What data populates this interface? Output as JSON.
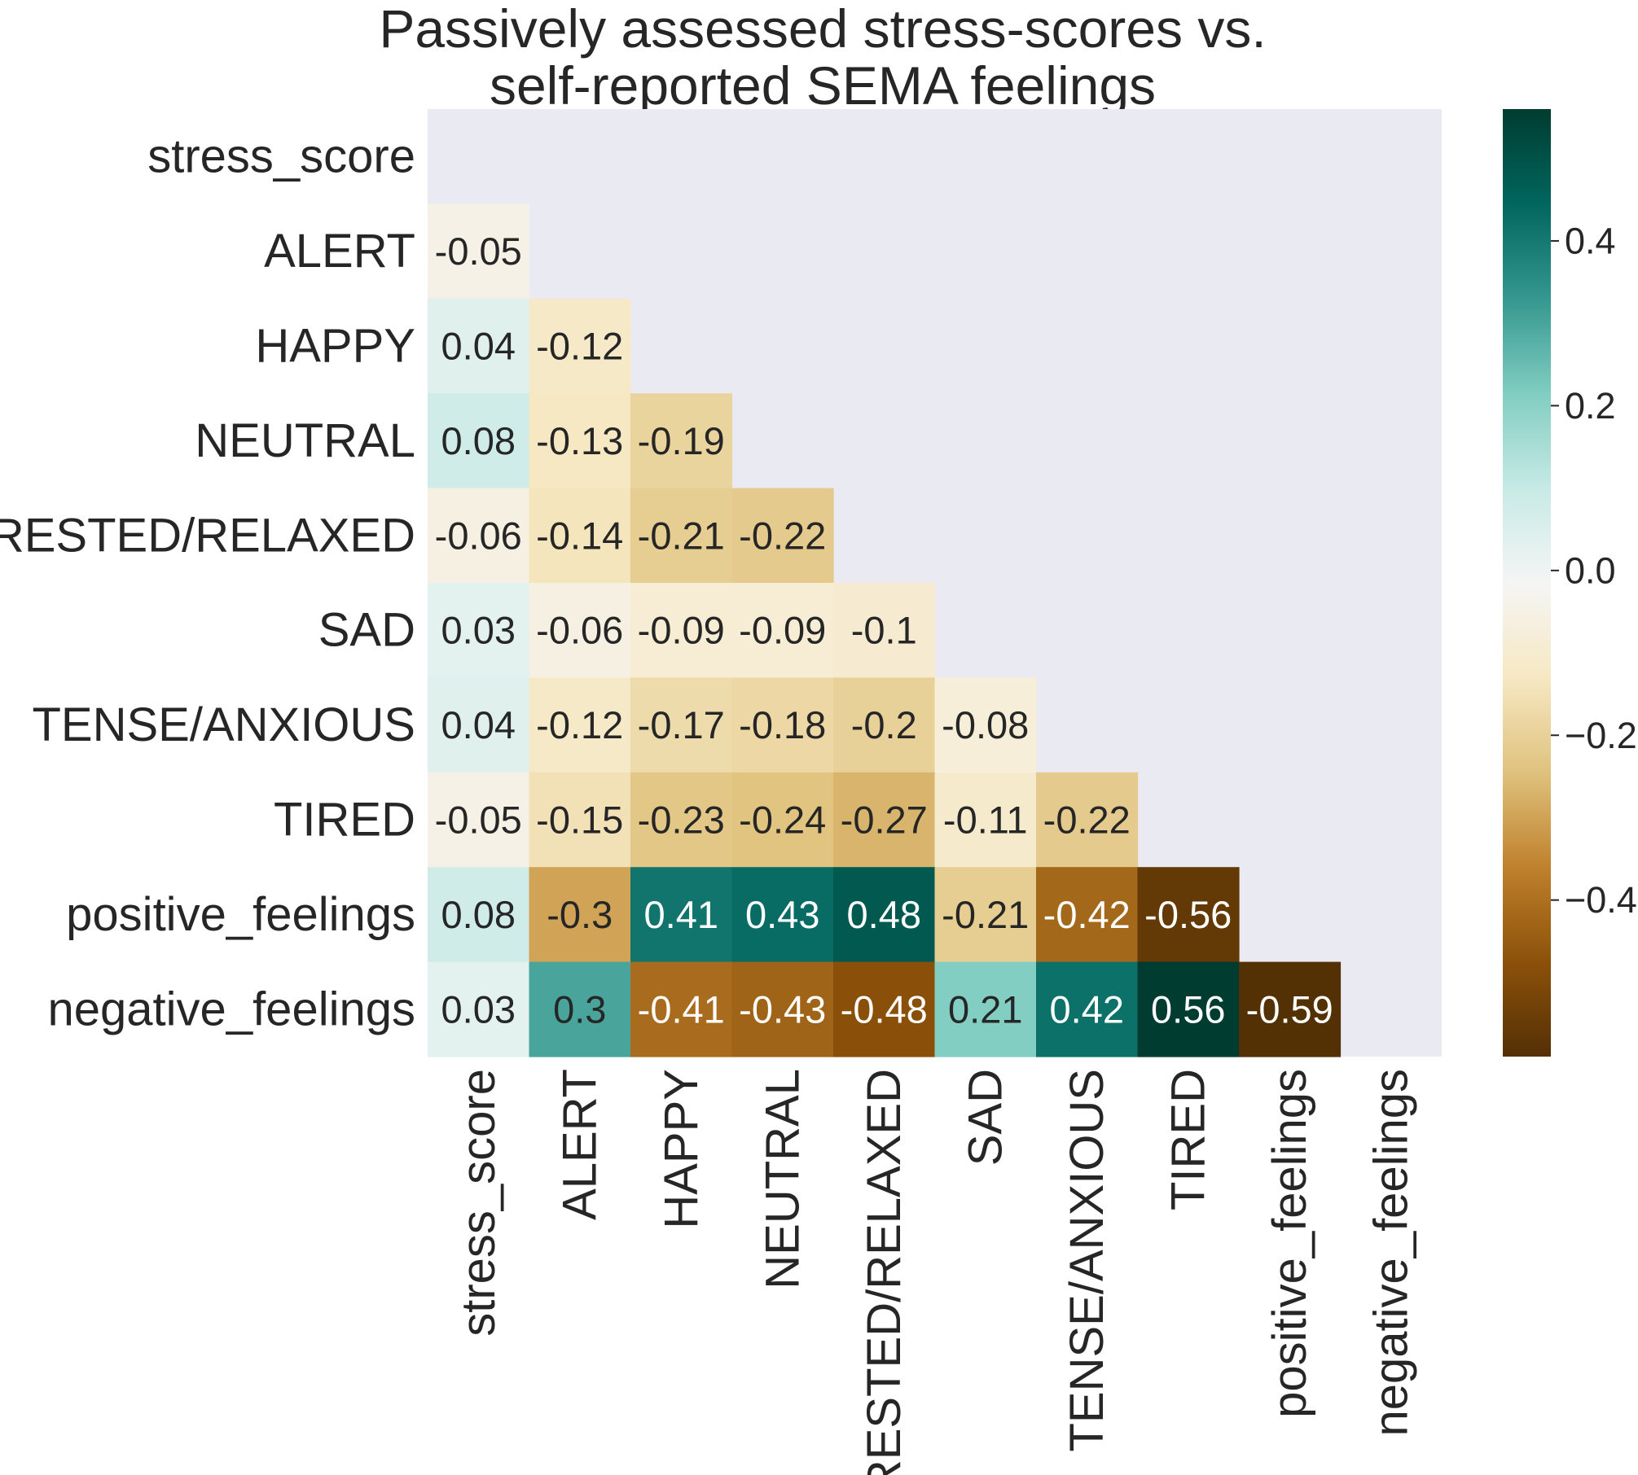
{
  "chart_data": {
    "type": "heatmap",
    "title": [
      "Passively assessed stress-scores vs.",
      "self-reported SEMA feelings"
    ],
    "xlabel": "",
    "ylabel": "",
    "variables": [
      "stress_score",
      "ALERT",
      "HAPPY",
      "NEUTRAL",
      "RESTED/RELAXED",
      "SAD",
      "TENSE/ANXIOUS",
      "TIRED",
      "positive_feelings",
      "negative_feelings"
    ],
    "matrix_shape": "lower-triangle (diagonal and upper triangle masked)",
    "values": [
      [],
      [
        -0.05
      ],
      [
        0.04,
        -0.12
      ],
      [
        0.08,
        -0.13,
        -0.19
      ],
      [
        -0.06,
        -0.14,
        -0.21,
        -0.22
      ],
      [
        0.03,
        -0.06,
        -0.09,
        -0.09,
        -0.1
      ],
      [
        0.04,
        -0.12,
        -0.17,
        -0.18,
        -0.2,
        -0.08
      ],
      [
        -0.05,
        -0.15,
        -0.23,
        -0.24,
        -0.27,
        -0.11,
        -0.22
      ],
      [
        0.08,
        -0.3,
        0.41,
        0.43,
        0.48,
        -0.21,
        -0.42,
        -0.56
      ],
      [
        0.03,
        0.3,
        -0.41,
        -0.43,
        -0.48,
        0.21,
        0.42,
        0.56,
        -0.59
      ]
    ],
    "colormap": "BrBG",
    "vmin": -0.59,
    "vmax": 0.56,
    "colorbar_ticks": [
      "0.4",
      "0.2",
      "0.0",
      "−0.2",
      "−0.4"
    ],
    "colorbar_tick_values": [
      0.4,
      0.2,
      0.0,
      -0.2,
      -0.4
    ],
    "mask_color": "#eaeaf2",
    "grid": false
  }
}
